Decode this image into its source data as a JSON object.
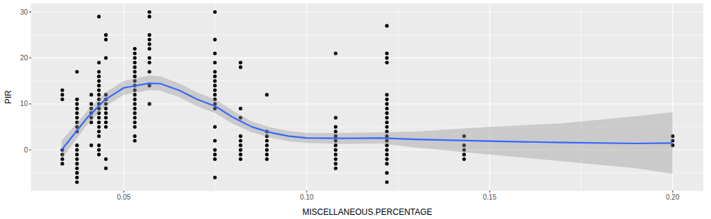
{
  "chart_data": {
    "type": "scatter",
    "x_label": "MISCELLANEOUS.PERCENTAGE",
    "y_label": "PIR",
    "xlim": [
      0.0247,
      0.2084
    ],
    "ylim": [
      -8.85,
      31.85
    ],
    "xticks": [
      {
        "value": 0.05,
        "label": "0.05"
      },
      {
        "value": 0.1,
        "label": "0.10"
      },
      {
        "value": 0.15,
        "label": "0.15"
      },
      {
        "value": 0.2,
        "label": "0.20"
      }
    ],
    "yticks": [
      0,
      10,
      20,
      30
    ],
    "grid": true,
    "series": [
      {
        "type": "scatter",
        "color": "#000000",
        "marker": "circle",
        "x": [
          0.0332,
          0.0332,
          0.0332,
          0.0332,
          0.0332,
          0.0332,
          0.0332,
          0.0372,
          0.0372,
          0.0372,
          0.0372,
          0.0372,
          0.0372,
          0.0372,
          0.0372,
          0.0372,
          0.0372,
          0.0372,
          0.0372,
          0.0372,
          0.0372,
          0.0372,
          0.0372,
          0.0372,
          0.0372,
          0.0411,
          0.0411,
          0.0411,
          0.0411,
          0.0411,
          0.0411,
          0.0411,
          0.0432,
          0.0432,
          0.0432,
          0.0432,
          0.0432,
          0.0432,
          0.0432,
          0.0432,
          0.0432,
          0.0432,
          0.0432,
          0.0432,
          0.0432,
          0.0432,
          0.0432,
          0.0432,
          0.0432,
          0.0432,
          0.0432,
          0.0432,
          0.0451,
          0.0451,
          0.0451,
          0.0451,
          0.0451,
          0.0451,
          0.0451,
          0.0451,
          0.0451,
          0.0451,
          0.0451,
          0.0451,
          0.0451,
          0.053,
          0.053,
          0.053,
          0.053,
          0.053,
          0.053,
          0.053,
          0.053,
          0.053,
          0.053,
          0.053,
          0.053,
          0.053,
          0.053,
          0.053,
          0.053,
          0.053,
          0.053,
          0.053,
          0.053,
          0.057,
          0.057,
          0.057,
          0.057,
          0.057,
          0.057,
          0.057,
          0.057,
          0.057,
          0.057,
          0.057,
          0.0749,
          0.0749,
          0.0749,
          0.0749,
          0.0749,
          0.0749,
          0.0749,
          0.0749,
          0.0749,
          0.0749,
          0.0749,
          0.0749,
          0.0749,
          0.0749,
          0.0749,
          0.0749,
          0.0749,
          0.0749,
          0.0749,
          0.0819,
          0.0819,
          0.0819,
          0.0819,
          0.0819,
          0.0819,
          0.0819,
          0.0819,
          0.0819,
          0.0819,
          0.0891,
          0.0891,
          0.0891,
          0.0891,
          0.0891,
          0.0891,
          0.0891,
          0.0891,
          0.1079,
          0.1079,
          0.1079,
          0.1079,
          0.1079,
          0.1079,
          0.1079,
          0.1079,
          0.1079,
          0.1079,
          0.1079,
          0.1079,
          0.1219,
          0.1219,
          0.1219,
          0.1219,
          0.1219,
          0.1219,
          0.1219,
          0.1219,
          0.1219,
          0.1219,
          0.1219,
          0.1219,
          0.1219,
          0.1219,
          0.1219,
          0.1219,
          0.1219,
          0.1219,
          0.1219,
          0.1219,
          0.1219,
          0.1219,
          0.143,
          0.143,
          0.143,
          0.143,
          0.143,
          0.2,
          0.2,
          0.2
        ],
        "values": [
          13,
          12,
          11,
          0,
          -1,
          -2,
          -3,
          17,
          11,
          10,
          9,
          8,
          7,
          6,
          5,
          4,
          1,
          0,
          -1,
          -2,
          -3,
          -4,
          -5,
          -6,
          -7,
          12,
          10,
          9,
          8,
          7,
          6,
          1,
          29,
          19,
          17,
          16,
          15,
          14,
          13,
          12,
          11,
          10,
          9,
          8,
          7,
          6,
          5,
          4,
          3,
          1,
          0,
          -1,
          25,
          24,
          20,
          12,
          11,
          10,
          9,
          8,
          7,
          6,
          5,
          -2,
          -4,
          22,
          21,
          20,
          19,
          18,
          17,
          16,
          15,
          14,
          13,
          12,
          11,
          10,
          9,
          8,
          7,
          6,
          5,
          3,
          2,
          30,
          29,
          25,
          24,
          23,
          22,
          20,
          19,
          17,
          14,
          10,
          30,
          24,
          21,
          19,
          17,
          16,
          15,
          14,
          13,
          12,
          11,
          10,
          9,
          5,
          2,
          0,
          -1,
          -2,
          -6,
          19,
          18,
          9,
          7,
          3,
          2,
          1,
          0,
          -1,
          -2,
          12,
          4,
          3,
          2,
          1,
          0,
          -1,
          -2,
          21,
          7,
          5,
          4,
          3,
          2,
          1,
          0,
          -1,
          -2,
          -3,
          -4,
          27,
          21,
          20,
          19,
          12,
          11,
          10,
          9,
          8,
          7,
          6,
          5,
          4,
          3,
          2,
          1,
          0,
          -1,
          -2,
          -3,
          -5,
          -7,
          3,
          1,
          0,
          -1,
          -2,
          3,
          2,
          1
        ]
      },
      {
        "type": "line",
        "color": "#3366FF",
        "x": [
          0.033,
          0.04,
          0.045,
          0.05,
          0.057,
          0.06,
          0.065,
          0.07,
          0.075,
          0.08,
          0.085,
          0.09,
          0.095,
          0.1,
          0.11,
          0.12,
          0.13,
          0.15,
          0.17,
          0.19,
          0.2
        ],
        "values": [
          0,
          7,
          11,
          13.5,
          14.5,
          14.4,
          13,
          11,
          9.5,
          7,
          5,
          3.8,
          3,
          2.6,
          2.5,
          2.6,
          2.3,
          1.9,
          1.6,
          1.4,
          1.5
        ],
        "lower": [
          -2,
          5.5,
          9.5,
          12,
          13,
          12.9,
          11.5,
          9.5,
          8,
          5.6,
          3.8,
          2.7,
          1.9,
          1.5,
          1.3,
          1.4,
          0.5,
          -1,
          -2.5,
          -4,
          -5.2
        ],
        "upper": [
          2,
          8.5,
          12.5,
          15,
          16.2,
          16,
          14.5,
          12.5,
          11,
          8.4,
          6.2,
          4.9,
          4.1,
          3.7,
          3.7,
          3.8,
          4,
          5,
          5.8,
          7.3,
          8.2
        ]
      }
    ]
  }
}
